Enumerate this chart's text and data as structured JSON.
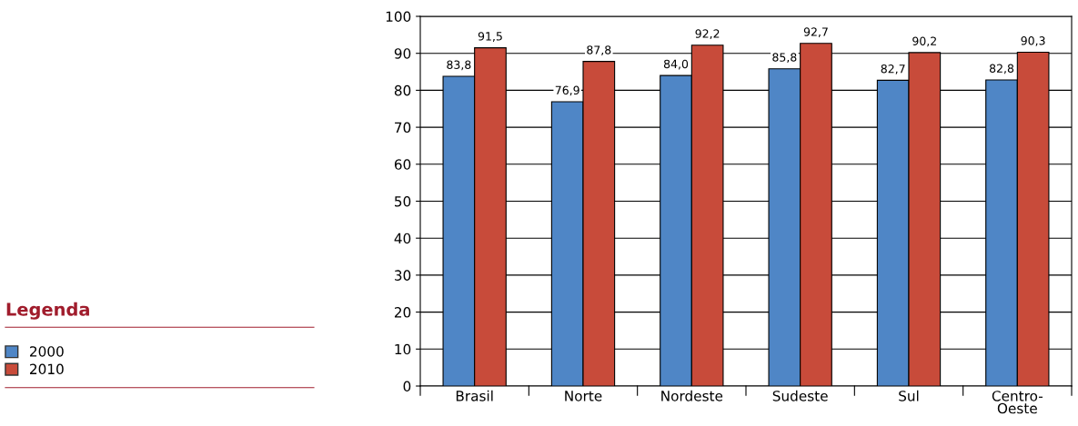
{
  "chart_data": {
    "type": "bar",
    "categories": [
      "Brasil",
      "Norte",
      "Nordeste",
      "Sudeste",
      "Sul",
      "Centro-\nOeste"
    ],
    "series": [
      {
        "name": "2000",
        "color": "#4f86c6",
        "values": [
          83.8,
          76.9,
          84.0,
          85.8,
          82.7,
          82.8
        ],
        "value_labels": [
          "83,8",
          "76,9",
          "84,0",
          "85,8",
          "82,7",
          "82,8"
        ]
      },
      {
        "name": "2010",
        "color": "#c84b3a",
        "values": [
          91.5,
          87.8,
          92.2,
          92.7,
          90.2,
          90.3
        ],
        "value_labels": [
          "91,5",
          "87,8",
          "92,2",
          "92,7",
          "90,2",
          "90,3"
        ]
      }
    ],
    "ylim": [
      0,
      100
    ],
    "yticks": [
      0,
      10,
      20,
      30,
      40,
      50,
      60,
      70,
      80,
      90,
      100
    ],
    "grid": "y",
    "legend": "bottom left",
    "legend_title": "Legenda"
  }
}
